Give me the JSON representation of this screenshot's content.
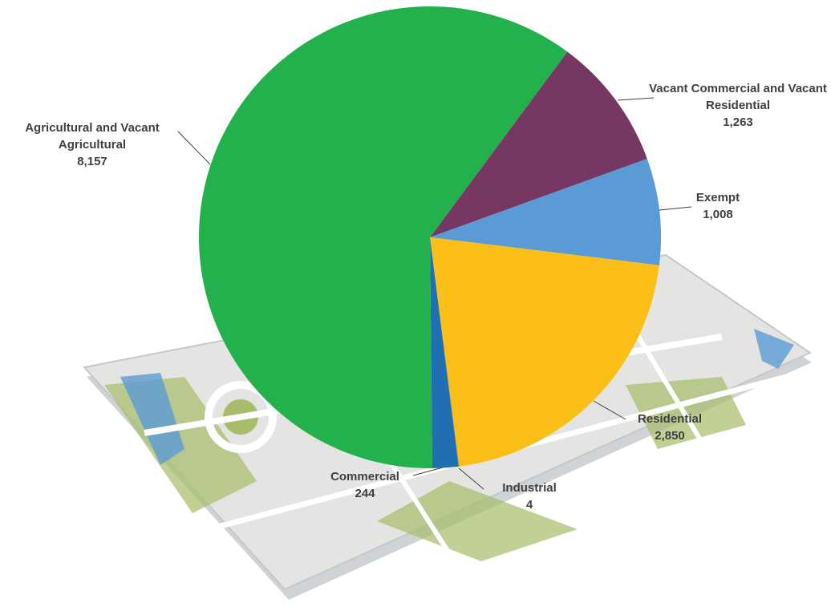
{
  "chart_data": {
    "type": "pie",
    "categories": [
      "Vacant Commercial and Vacant Residential",
      "Exempt",
      "Residential",
      "Industrial",
      "Commercial",
      "Agricultural and Vacant Agricultural"
    ],
    "values": [
      1263,
      1008,
      2850,
      4,
      244,
      8157
    ],
    "value_labels": [
      "1,263",
      "1,008",
      "2,850",
      "4",
      "244",
      "8,157"
    ],
    "colors": [
      "#763862",
      "#5b9bd5",
      "#fbbf17",
      "#1f6fb2",
      "#1f6fb2",
      "#22b14c"
    ]
  }
}
